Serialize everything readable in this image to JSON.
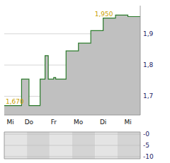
{
  "chart_data": [
    {
      "type": "line",
      "x": [
        0.0,
        0.7,
        0.7,
        1.0,
        1.0,
        1.45,
        1.45,
        1.65,
        1.65,
        1.78,
        1.78,
        2.0,
        2.0,
        2.08,
        2.08,
        2.5,
        2.5,
        3.0,
        3.0,
        3.5,
        3.5,
        4.0,
        4.0,
        4.5,
        4.5,
        5.0,
        5.0,
        5.5
      ],
      "series": [
        {
          "type": "area",
          "color": "#c0c0c0",
          "values": [
            1.67,
            1.67,
            1.755,
            1.755,
            1.67,
            1.67,
            1.755,
            1.755,
            1.83,
            1.83,
            1.755,
            1.755,
            1.76,
            1.76,
            1.755,
            1.755,
            1.845,
            1.845,
            1.87,
            1.87,
            1.91,
            1.91,
            1.95,
            1.95,
            1.96,
            1.96,
            1.955,
            1.955
          ]
        },
        {
          "type": "line",
          "color": "#2a7a2a",
          "values": [
            1.67,
            1.67,
            1.755,
            1.755,
            1.67,
            1.67,
            1.755,
            1.755,
            1.83,
            1.83,
            1.755,
            1.755,
            1.76,
            1.76,
            1.755,
            1.755,
            1.845,
            1.845,
            1.87,
            1.87,
            1.91,
            1.91,
            1.95,
            1.95,
            1.96,
            1.96,
            1.955,
            1.955
          ]
        }
      ],
      "xlim": [
        0,
        5.5
      ],
      "xticks": [
        {
          "value": 0.25,
          "label": "Mi"
        },
        {
          "value": 1.0,
          "label": "Do"
        },
        {
          "value": 2.0,
          "label": "Fr"
        },
        {
          "value": 3.0,
          "label": "Mo"
        },
        {
          "value": 4.0,
          "label": "Di"
        },
        {
          "value": 5.0,
          "label": "Mi"
        }
      ],
      "ylim": [
        1.64,
        1.99
      ],
      "yticks": [
        {
          "value": 1.7,
          "label": "1,7"
        },
        {
          "value": 1.8,
          "label": "1,8"
        },
        {
          "value": 1.9,
          "label": "1,9"
        }
      ],
      "grid": true,
      "annotations": [
        {
          "text": "1,670",
          "x": 0.0,
          "y": 1.67,
          "color": "#c8a000"
        },
        {
          "text": "1,950",
          "x": 3.6,
          "y": 1.95,
          "color": "#c8a000"
        }
      ]
    },
    {
      "type": "band",
      "x": [
        0.0,
        0.92,
        1.83,
        2.75,
        3.67,
        4.58,
        5.5
      ],
      "colors": [
        "#e4e4e4",
        "#d4d4d4",
        "#e4e4e4",
        "#d4d4d4",
        "#e4e4e4",
        "#d4d4d4"
      ],
      "xlim": [
        0,
        5.5
      ],
      "ylim": [
        -11,
        1
      ],
      "yticks": [
        -10,
        -5,
        {
          "value": 0,
          "label": "-0"
        }
      ],
      "grid": true,
      "tick_labels": "y"
    }
  ]
}
